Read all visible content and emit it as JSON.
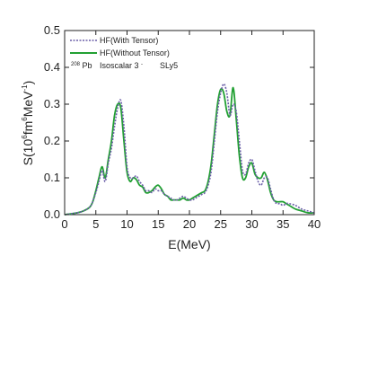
{
  "chart_data": {
    "type": "line",
    "xlabel": "E(MeV)",
    "ylabel": {
      "parts": [
        "S(10",
        "6",
        "fm",
        "6",
        "MeV",
        "-1",
        ")"
      ]
    },
    "xlim": [
      0,
      40
    ],
    "ylim": [
      0.0,
      0.5
    ],
    "xticks": [
      "0",
      "5",
      "10",
      "15",
      "20",
      "25",
      "30",
      "35",
      "40"
    ],
    "yticks": [
      "0.0",
      "0.1",
      "0.2",
      "0.3",
      "0.4",
      "0.5"
    ],
    "grid": false,
    "legend_position": "top-left",
    "annotation": {
      "mass": "208",
      "nucleus": "Pb",
      "channel": "Isoscalar 3",
      "superscript": "-",
      "force": "SLy5"
    },
    "series": [
      {
        "name": "HF(With Tensor)",
        "color": "#6b5fa8",
        "style": "dotted",
        "x": [
          0,
          2,
          3,
          4,
          4.5,
          5,
          5.5,
          6,
          6.5,
          7,
          7.5,
          8,
          8.5,
          9,
          9.5,
          10,
          10.5,
          11,
          11.5,
          12,
          12.5,
          13,
          13.5,
          14,
          14.5,
          15,
          15.5,
          16,
          16.5,
          17,
          17.5,
          18,
          18.5,
          19,
          19.5,
          20,
          20.5,
          21,
          21.5,
          22,
          22.5,
          23,
          23.5,
          24,
          24.5,
          25,
          25.5,
          26,
          26.5,
          27,
          27.5,
          28,
          28.5,
          29,
          29.5,
          30,
          30.5,
          31,
          31.5,
          32,
          32.5,
          33,
          33.5,
          34,
          34.5,
          35,
          35.5,
          36,
          37,
          38,
          39,
          40
        ],
        "y": [
          0.0,
          0.005,
          0.01,
          0.02,
          0.035,
          0.06,
          0.09,
          0.12,
          0.09,
          0.14,
          0.18,
          0.24,
          0.29,
          0.31,
          0.24,
          0.13,
          0.1,
          0.1,
          0.105,
          0.09,
          0.08,
          0.065,
          0.065,
          0.06,
          0.07,
          0.065,
          0.065,
          0.055,
          0.05,
          0.045,
          0.04,
          0.04,
          0.045,
          0.05,
          0.045,
          0.04,
          0.04,
          0.045,
          0.05,
          0.055,
          0.06,
          0.08,
          0.12,
          0.2,
          0.28,
          0.33,
          0.355,
          0.33,
          0.27,
          0.3,
          0.28,
          0.2,
          0.12,
          0.11,
          0.14,
          0.15,
          0.12,
          0.09,
          0.08,
          0.1,
          0.1,
          0.07,
          0.04,
          0.03,
          0.03,
          0.025,
          0.03,
          0.03,
          0.025,
          0.015,
          0.01,
          0.005
        ]
      },
      {
        "name": "HF(Without Tensor)",
        "color": "#22a033",
        "style": "solid",
        "x": [
          0,
          2,
          3,
          4,
          4.5,
          5,
          5.5,
          6,
          6.5,
          7,
          7.5,
          8,
          8.5,
          9,
          9.5,
          10,
          10.5,
          11,
          11.5,
          12,
          12.5,
          13,
          13.5,
          14,
          14.5,
          15,
          15.5,
          16,
          16.5,
          17,
          17.5,
          18,
          18.5,
          19,
          19.5,
          20,
          20.5,
          21,
          21.5,
          22,
          22.5,
          23,
          23.5,
          24,
          24.5,
          25,
          25.5,
          26,
          26.5,
          27,
          27.5,
          28,
          28.5,
          29,
          29.5,
          30,
          30.5,
          31,
          31.5,
          32,
          32.5,
          33,
          33.5,
          34,
          34.5,
          35,
          35.5,
          36,
          37,
          38,
          39,
          40
        ],
        "y": [
          0.0,
          0.005,
          0.01,
          0.02,
          0.035,
          0.065,
          0.1,
          0.13,
          0.1,
          0.15,
          0.2,
          0.27,
          0.3,
          0.29,
          0.2,
          0.115,
          0.09,
          0.1,
          0.095,
          0.08,
          0.075,
          0.06,
          0.06,
          0.065,
          0.075,
          0.08,
          0.07,
          0.055,
          0.05,
          0.04,
          0.04,
          0.04,
          0.04,
          0.045,
          0.04,
          0.04,
          0.045,
          0.05,
          0.055,
          0.06,
          0.065,
          0.09,
          0.14,
          0.22,
          0.3,
          0.34,
          0.33,
          0.28,
          0.27,
          0.345,
          0.26,
          0.16,
          0.1,
          0.1,
          0.13,
          0.14,
          0.11,
          0.1,
          0.1,
          0.115,
          0.095,
          0.06,
          0.04,
          0.035,
          0.035,
          0.035,
          0.03,
          0.025,
          0.015,
          0.01,
          0.005,
          0.005
        ]
      }
    ]
  }
}
